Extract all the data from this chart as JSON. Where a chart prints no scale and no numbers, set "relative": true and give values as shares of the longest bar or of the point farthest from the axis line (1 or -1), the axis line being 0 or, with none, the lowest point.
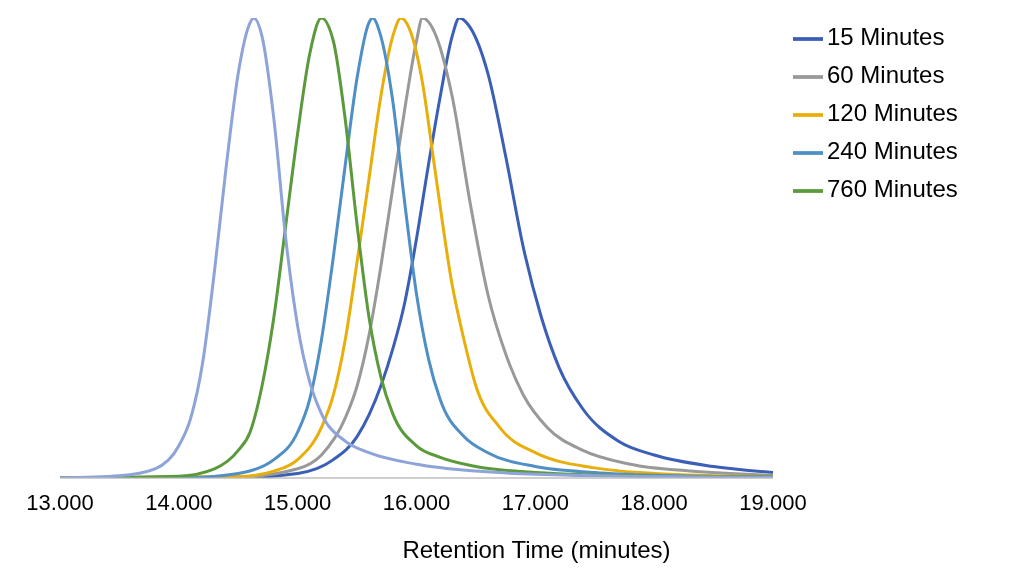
{
  "chart_data": {
    "type": "line",
    "relative": true,
    "xlabel": "Retention Time (minutes)",
    "xlim": [
      13,
      19
    ],
    "xticks": [
      {
        "value": 13,
        "label": "13.000"
      },
      {
        "value": 14,
        "label": "14.000"
      },
      {
        "value": 15,
        "label": "15.000"
      },
      {
        "value": 16,
        "label": "16.000"
      },
      {
        "value": 17,
        "label": "17.000"
      },
      {
        "value": 18,
        "label": "18.000"
      },
      {
        "value": 19,
        "label": "19.000"
      }
    ],
    "grid": false,
    "legend": "right",
    "marker": "none",
    "line_style": "solid",
    "series": [
      {
        "name": "15 Minutes",
        "color": "#3a5fb5",
        "x": [
          13,
          14.5,
          15,
          15.3,
          15.5,
          15.7,
          15.8,
          15.9,
          16,
          16.1,
          16.2,
          16.3,
          16.36,
          16.45,
          16.6,
          16.75,
          16.9,
          17.05,
          17.2,
          17.4,
          17.7,
          18,
          18.5,
          19
        ],
        "values": [
          0,
          0.001,
          0.01,
          0.04,
          0.09,
          0.2,
          0.28,
          0.38,
          0.52,
          0.68,
          0.83,
          0.96,
          1,
          0.98,
          0.88,
          0.7,
          0.5,
          0.35,
          0.24,
          0.15,
          0.08,
          0.05,
          0.025,
          0.012
        ]
      },
      {
        "name": "60 Minutes",
        "color": "#999999",
        "x": [
          13,
          14.5,
          15,
          15.2,
          15.4,
          15.5,
          15.6,
          15.7,
          15.8,
          15.9,
          16,
          16.05,
          16.15,
          16.3,
          16.45,
          16.6,
          16.75,
          16.9,
          17.1,
          17.4,
          17.8,
          18.3,
          19
        ],
        "values": [
          0,
          0.002,
          0.02,
          0.05,
          0.13,
          0.2,
          0.31,
          0.46,
          0.63,
          0.8,
          0.95,
          1,
          0.97,
          0.83,
          0.6,
          0.4,
          0.27,
          0.18,
          0.11,
          0.06,
          0.03,
          0.015,
          0.006
        ]
      },
      {
        "name": "120 Minutes",
        "color": "#e8ae0c",
        "x": [
          13,
          14.5,
          14.8,
          15,
          15.2,
          15.3,
          15.4,
          15.5,
          15.6,
          15.7,
          15.8,
          15.87,
          15.95,
          16.05,
          16.15,
          16.3,
          16.4,
          16.5,
          16.7,
          17,
          17.5,
          18,
          19
        ],
        "values": [
          0,
          0.003,
          0.015,
          0.04,
          0.11,
          0.18,
          0.3,
          0.47,
          0.65,
          0.83,
          0.96,
          1,
          0.97,
          0.86,
          0.68,
          0.42,
          0.3,
          0.2,
          0.11,
          0.055,
          0.022,
          0.01,
          0.003
        ]
      },
      {
        "name": "240 Minutes",
        "color": "#4f8fc6",
        "x": [
          13,
          14,
          14.5,
          14.8,
          15,
          15.1,
          15.2,
          15.3,
          15.4,
          15.5,
          15.6,
          15.63,
          15.7,
          15.8,
          15.9,
          16,
          16.1,
          16.2,
          16.4,
          16.6,
          17,
          17.5,
          18,
          19
        ],
        "values": [
          0,
          0,
          0.01,
          0.04,
          0.1,
          0.17,
          0.3,
          0.48,
          0.68,
          0.87,
          0.99,
          1,
          0.96,
          0.82,
          0.6,
          0.4,
          0.26,
          0.17,
          0.09,
          0.055,
          0.025,
          0.012,
          0.006,
          0.002
        ]
      },
      {
        "name": "760 Minutes",
        "color": "#5a9a3c",
        "x": [
          13,
          14,
          14.3,
          14.5,
          14.6,
          14.7,
          14.8,
          14.9,
          15,
          15.1,
          15.2,
          15.3,
          15.4,
          15.5,
          15.6,
          15.7,
          15.8,
          16,
          16.2,
          16.5,
          17,
          18,
          19
        ],
        "values": [
          0,
          0.004,
          0.02,
          0.06,
          0.1,
          0.2,
          0.35,
          0.55,
          0.75,
          0.92,
          1,
          0.95,
          0.78,
          0.55,
          0.35,
          0.22,
          0.14,
          0.07,
          0.045,
          0.025,
          0.012,
          0.004,
          0.002
        ]
      },
      {
        "color": "#8ea3d8",
        "x": [
          13,
          13.5,
          13.8,
          14,
          14.1,
          14.2,
          14.3,
          14.4,
          14.5,
          14.6,
          14.63,
          14.7,
          14.8,
          14.9,
          15,
          15.1,
          15.2,
          15.4,
          15.6,
          16,
          16.5,
          17,
          18,
          19
        ],
        "values": [
          0,
          0.005,
          0.02,
          0.07,
          0.13,
          0.25,
          0.45,
          0.68,
          0.88,
          0.99,
          1,
          0.96,
          0.78,
          0.52,
          0.33,
          0.21,
          0.14,
          0.08,
          0.055,
          0.03,
          0.015,
          0.008,
          0.003,
          0.001
        ]
      }
    ]
  }
}
